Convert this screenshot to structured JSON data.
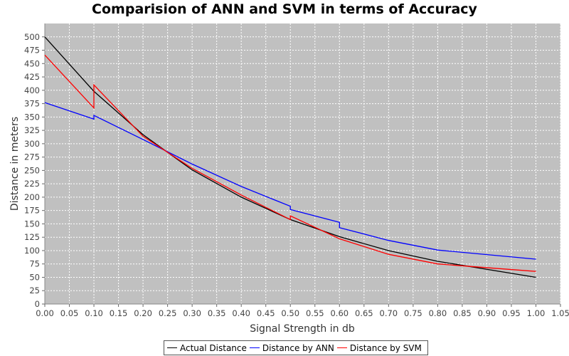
{
  "chart_data": {
    "type": "line",
    "title": "Comparision of ANN and SVM in terms of Accuracy",
    "xlabel": "Signal Strength in db",
    "ylabel": "Distance in meters",
    "xlim": [
      0,
      1.05
    ],
    "ylim": [
      0,
      525
    ],
    "x_ticks": [
      "0.00",
      "0.05",
      "0.10",
      "0.15",
      "0.20",
      "0.25",
      "0.30",
      "0.35",
      "0.40",
      "0.45",
      "0.50",
      "0.55",
      "0.60",
      "0.65",
      "0.70",
      "0.75",
      "0.80",
      "0.85",
      "0.90",
      "0.95",
      "1.00",
      "1.05"
    ],
    "y_ticks": [
      "0",
      "25",
      "50",
      "75",
      "100",
      "125",
      "150",
      "175",
      "200",
      "225",
      "250",
      "275",
      "300",
      "325",
      "350",
      "375",
      "400",
      "425",
      "450",
      "475",
      "500"
    ],
    "grid": true,
    "legend_position": "bottom",
    "series": [
      {
        "name": "Actual Distance",
        "color": "#000000",
        "x": [
          0.0,
          0.1,
          0.2,
          0.3,
          0.4,
          0.5,
          0.6,
          0.7,
          0.8,
          1.0
        ],
        "y": [
          500,
          398,
          317,
          251,
          200,
          158,
          126,
          100,
          80,
          50
        ]
      },
      {
        "name": "Distance by ANN",
        "color": "#0000ff",
        "x": [
          0.0,
          0.1,
          0.1,
          0.2,
          0.3,
          0.4,
          0.5,
          0.5,
          0.6,
          0.6,
          0.7,
          0.8,
          1.0
        ],
        "y": [
          377,
          346,
          353,
          308,
          262,
          220,
          183,
          177,
          153,
          143,
          119,
          101,
          84
        ]
      },
      {
        "name": "Distance by SVM",
        "color": "#ff0000",
        "x": [
          0.0,
          0.1,
          0.1,
          0.2,
          0.3,
          0.4,
          0.5,
          0.5,
          0.6,
          0.7,
          0.8,
          1.0
        ],
        "y": [
          466,
          367,
          410,
          314,
          254,
          204,
          158,
          165,
          122,
          93,
          75,
          61
        ]
      }
    ]
  }
}
